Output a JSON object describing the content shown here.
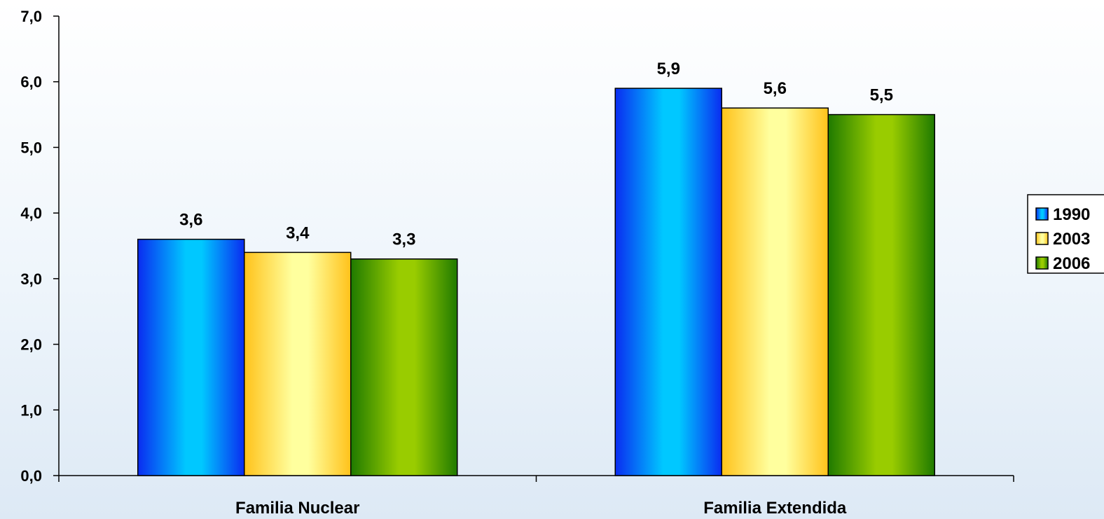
{
  "chart_data": {
    "type": "bar",
    "categories": [
      "Familia Nuclear",
      "Familia Extendida"
    ],
    "series": [
      {
        "name": "1990",
        "values": [
          3.6,
          5.9
        ],
        "labels": [
          "3,6",
          "5,9"
        ],
        "colors": [
          "#0a2cf0",
          "#00c8ff"
        ]
      },
      {
        "name": "2003",
        "values": [
          3.4,
          5.6
        ],
        "labels": [
          "3,4",
          "5,6"
        ],
        "colors": [
          "#ffc21a",
          "#ffff9e"
        ]
      },
      {
        "name": "2006",
        "values": [
          3.3,
          5.5
        ],
        "labels": [
          "3,3",
          "5,5"
        ],
        "colors": [
          "#1f7a00",
          "#99cc00"
        ]
      }
    ],
    "ylim": [
      0,
      7
    ],
    "yticks": [
      0,
      1,
      2,
      3,
      4,
      5,
      6,
      7
    ],
    "ytick_labels": [
      "0,0",
      "1,0",
      "2,0",
      "3,0",
      "4,0",
      "5,0",
      "6,0",
      "7,0"
    ],
    "title": "",
    "xlabel": "",
    "ylabel": "",
    "legend": {
      "placement": "right"
    },
    "grid": false
  }
}
